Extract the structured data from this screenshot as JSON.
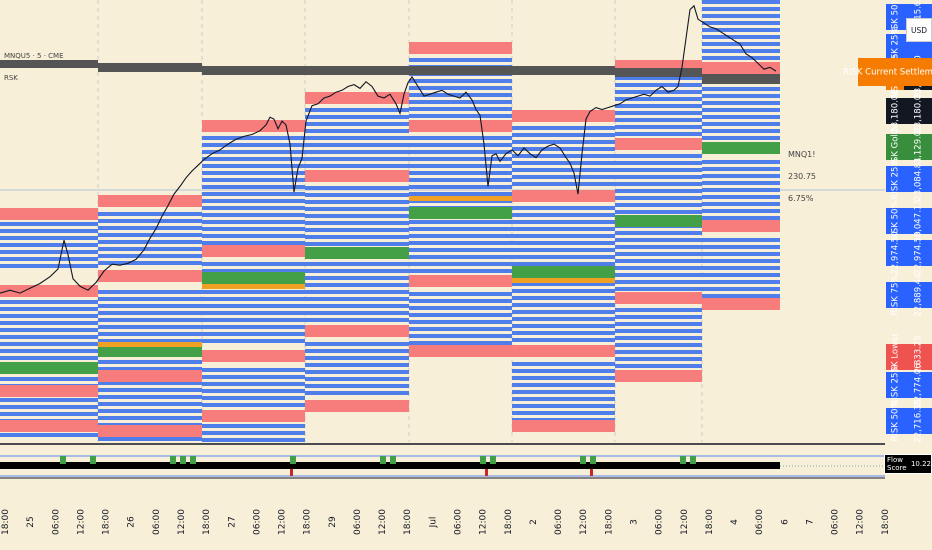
{
  "header": {
    "symbol_line": "MNQU5 · 5 · CME",
    "sub_line": "RSK"
  },
  "currency": "USD",
  "chart_data": {
    "type": "line",
    "symbol": "MNQ1!",
    "x_tick_labels": [
      "18:00",
      "25",
      "06:00",
      "12:00",
      "18:00",
      "26",
      "06:00",
      "12:00",
      "18:00",
      "27",
      "06:00",
      "12:00",
      "18:00",
      "29",
      "06:00",
      "12:00",
      "18:00",
      "Jul",
      "06:00",
      "12:00",
      "18:00",
      "2",
      "06:00",
      "12:00",
      "18:00",
      "3",
      "06:00",
      "12:00",
      "18:00",
      "4",
      "06:00",
      "6",
      "7",
      "06:00",
      "12:00",
      "18:00"
    ],
    "ylim": [
      22700,
      23160
    ],
    "price_path": [
      [
        0,
        22855
      ],
      [
        10,
        22858
      ],
      [
        20,
        22855
      ],
      [
        30,
        22860
      ],
      [
        40,
        22865
      ],
      [
        50,
        22872
      ],
      [
        58,
        22880
      ],
      [
        64,
        22910
      ],
      [
        68,
        22895
      ],
      [
        73,
        22870
      ],
      [
        80,
        22862
      ],
      [
        88,
        22858
      ],
      [
        96,
        22866
      ],
      [
        104,
        22878
      ],
      [
        112,
        22885
      ],
      [
        120,
        22884
      ],
      [
        128,
        22886
      ],
      [
        136,
        22890
      ],
      [
        144,
        22900
      ],
      [
        150,
        22912
      ],
      [
        156,
        22922
      ],
      [
        162,
        22935
      ],
      [
        168,
        22946
      ],
      [
        174,
        22958
      ],
      [
        180,
        22966
      ],
      [
        186,
        22975
      ],
      [
        192,
        22982
      ],
      [
        198,
        22988
      ],
      [
        204,
        22994
      ],
      [
        212,
        23000
      ],
      [
        220,
        23004
      ],
      [
        228,
        23010
      ],
      [
        236,
        23015
      ],
      [
        244,
        23018
      ],
      [
        252,
        23020
      ],
      [
        260,
        23024
      ],
      [
        266,
        23030
      ],
      [
        270,
        23038
      ],
      [
        274,
        23036
      ],
      [
        278,
        23026
      ],
      [
        282,
        23034
      ],
      [
        286,
        23030
      ],
      [
        290,
        23010
      ],
      [
        294,
        22960
      ],
      [
        298,
        22985
      ],
      [
        302,
        22995
      ],
      [
        306,
        23034
      ],
      [
        312,
        23050
      ],
      [
        318,
        23052
      ],
      [
        324,
        23058
      ],
      [
        330,
        23060
      ],
      [
        336,
        23064
      ],
      [
        342,
        23066
      ],
      [
        348,
        23070
      ],
      [
        354,
        23072
      ],
      [
        360,
        23068
      ],
      [
        366,
        23075
      ],
      [
        372,
        23070
      ],
      [
        378,
        23060
      ],
      [
        384,
        23058
      ],
      [
        390,
        23062
      ],
      [
        396,
        23052
      ],
      [
        400,
        23042
      ],
      [
        404,
        23062
      ],
      [
        408,
        23074
      ],
      [
        412,
        23080
      ],
      [
        418,
        23070
      ],
      [
        424,
        23060
      ],
      [
        430,
        23062
      ],
      [
        436,
        23064
      ],
      [
        442,
        23066
      ],
      [
        448,
        23062
      ],
      [
        454,
        23060
      ],
      [
        460,
        23058
      ],
      [
        466,
        23064
      ],
      [
        472,
        23056
      ],
      [
        476,
        23046
      ],
      [
        480,
        23040
      ],
      [
        484,
        23010
      ],
      [
        488,
        22966
      ],
      [
        492,
        22998
      ],
      [
        496,
        23000
      ],
      [
        500,
        22992
      ],
      [
        506,
        23000
      ],
      [
        512,
        23004
      ],
      [
        518,
        22998
      ],
      [
        524,
        23006
      ],
      [
        530,
        23000
      ],
      [
        536,
        22996
      ],
      [
        542,
        23004
      ],
      [
        548,
        23008
      ],
      [
        554,
        23010
      ],
      [
        560,
        23006
      ],
      [
        566,
        22996
      ],
      [
        570,
        22990
      ],
      [
        574,
        22980
      ],
      [
        578,
        22958
      ],
      [
        582,
        23000
      ],
      [
        586,
        23036
      ],
      [
        590,
        23044
      ],
      [
        596,
        23048
      ],
      [
        602,
        23046
      ],
      [
        608,
        23048
      ],
      [
        614,
        23050
      ],
      [
        620,
        23052
      ],
      [
        626,
        23056
      ],
      [
        632,
        23058
      ],
      [
        638,
        23060
      ],
      [
        644,
        23062
      ],
      [
        650,
        23060
      ],
      [
        656,
        23066
      ],
      [
        662,
        23070
      ],
      [
        668,
        23064
      ],
      [
        674,
        23066
      ],
      [
        678,
        23070
      ],
      [
        682,
        23090
      ],
      [
        686,
        23120
      ],
      [
        690,
        23150
      ],
      [
        694,
        23154
      ],
      [
        698,
        23140
      ],
      [
        704,
        23136
      ],
      [
        710,
        23132
      ],
      [
        716,
        23130
      ],
      [
        722,
        23126
      ],
      [
        728,
        23122
      ],
      [
        734,
        23118
      ],
      [
        740,
        23114
      ],
      [
        746,
        23104
      ],
      [
        752,
        23100
      ],
      [
        758,
        23094
      ],
      [
        764,
        23088
      ],
      [
        770,
        23090
      ],
      [
        776,
        23086
      ]
    ],
    "right_labels": [
      {
        "text": "RISK 50%",
        "price": 23315.66,
        "color": "#2962ff"
      },
      {
        "text": "RISK 25%",
        "price": 23270.0,
        "color": "#2962ff"
      },
      {
        "text": "RISK Current Settlement",
        "price": 23222.0,
        "color": "#f57c00"
      },
      {
        "text": "23,180.00",
        "price": 23180.0,
        "color": "#131722"
      },
      {
        "text": "RISK Golden",
        "price": 23129.0,
        "color": "#388e3c"
      },
      {
        "text": "RISK 25%",
        "price": 23084.81,
        "color": "#2962ff"
      },
      {
        "text": "RISK 50%",
        "price": 23047.13,
        "color": "#2962ff"
      },
      {
        "text": "22,974.50",
        "price": 22974.5,
        "color": "#2962ff"
      },
      {
        "text": "RISK 75%",
        "price": 22889.44,
        "color": "#2962ff"
      },
      {
        "text": "RISK Lower Risk",
        "price": 22833.25,
        "color": "#ef5350"
      },
      {
        "text": "RISK 25%",
        "price": 22774.06,
        "color": "#2962ff"
      },
      {
        "text": "RISK 50%",
        "price": 22716.38,
        "color": "#2962ff"
      }
    ],
    "right_values": [
      "23,315.66",
      "",
      "23,222.00",
      "23,180.00",
      "23,129.00",
      "23,084.81",
      "23,047.13",
      "22,974.50",
      "22,889.44",
      "22,833.25",
      "22,774.06",
      "22,716.38"
    ],
    "price_tag": {
      "symbol": "MNQ1!",
      "value": "230.75",
      "change": "6.75%"
    },
    "indicator": {
      "label": "Flow Score",
      "value": "10.22"
    }
  }
}
